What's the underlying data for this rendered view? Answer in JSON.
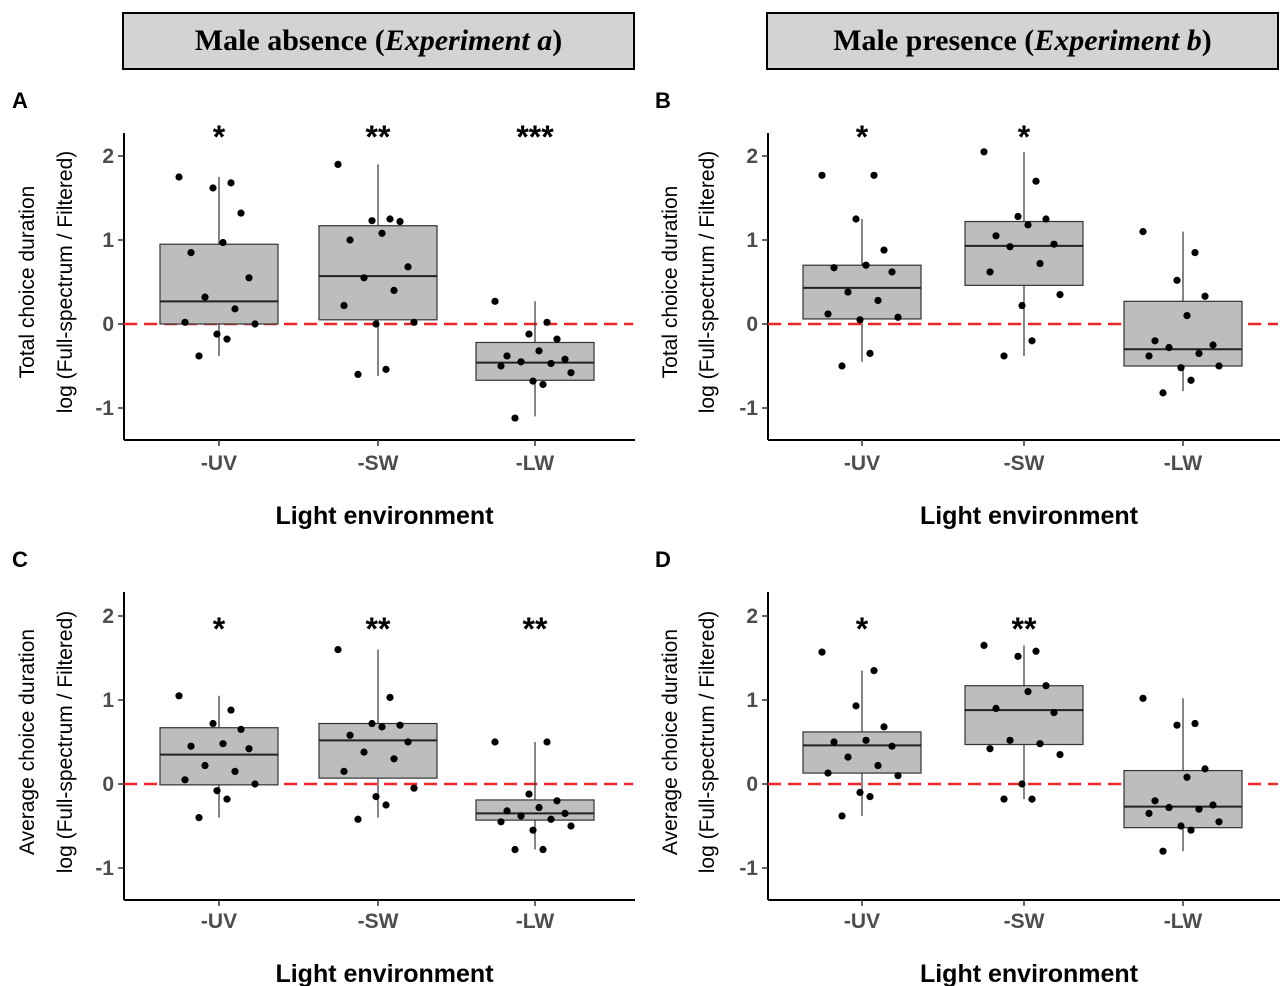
{
  "headers": {
    "left": {
      "main": "Male absence (",
      "italic": "Experiment a",
      "close": ")"
    },
    "right": {
      "main": "Male presence (",
      "italic": "Experiment b",
      "close": ")"
    }
  },
  "chart_data": [
    {
      "panel": "A",
      "type": "box",
      "xlabel": "Light environment",
      "ylabel": [
        "Total choice duration",
        "log (Full-spectrum / Filtered)"
      ],
      "ylim": [
        -1.35,
        2.25
      ],
      "yticks": [
        -1,
        0,
        1,
        2
      ],
      "reference_line": 0,
      "categories": [
        "-UV",
        "-SW",
        "-LW"
      ],
      "significance": [
        "*",
        "**",
        "***"
      ],
      "boxes": [
        {
          "q1": 0.0,
          "median": 0.27,
          "q3": 0.95,
          "whisker_low": -0.38,
          "whisker_high": 1.75
        },
        {
          "q1": 0.05,
          "median": 0.57,
          "q3": 1.17,
          "whisker_low": -0.62,
          "whisker_high": 1.9
        },
        {
          "q1": -0.67,
          "median": -0.46,
          "q3": -0.22,
          "whisker_low": -1.1,
          "whisker_high": 0.27
        }
      ],
      "points": [
        [
          1.75,
          1.68,
          1.62,
          1.32,
          0.97,
          0.85,
          0.55,
          0.32,
          0.18,
          0.02,
          0.0,
          -0.12,
          -0.18,
          -0.38
        ],
        [
          1.9,
          1.25,
          1.23,
          1.22,
          1.08,
          1.0,
          0.68,
          0.55,
          0.4,
          0.22,
          0.02,
          0.0,
          -0.54,
          -0.6
        ],
        [
          0.27,
          0.02,
          -0.12,
          -0.18,
          -0.32,
          -0.38,
          -0.42,
          -0.45,
          -0.47,
          -0.5,
          -0.58,
          -0.68,
          -0.72,
          -1.12
        ]
      ]
    },
    {
      "panel": "B",
      "type": "box",
      "xlabel": "Light environment",
      "ylabel": [
        "Total choice duration",
        "log (Full-spectrum / Filtered)"
      ],
      "ylim": [
        -1.35,
        2.25
      ],
      "yticks": [
        -1,
        0,
        1,
        2
      ],
      "reference_line": 0,
      "categories": [
        "-UV",
        "-SW",
        "-LW"
      ],
      "significance": [
        "*",
        "*",
        ""
      ],
      "boxes": [
        {
          "q1": 0.06,
          "median": 0.43,
          "q3": 0.7,
          "whisker_low": -0.45,
          "whisker_high": 1.25
        },
        {
          "q1": 0.46,
          "median": 0.93,
          "q3": 1.22,
          "whisker_low": -0.38,
          "whisker_high": 2.05
        },
        {
          "q1": -0.5,
          "median": -0.3,
          "q3": 0.27,
          "whisker_low": -0.8,
          "whisker_high": 1.1
        }
      ],
      "points": [
        [
          1.77,
          1.77,
          1.25,
          0.88,
          0.7,
          0.67,
          0.62,
          0.38,
          0.28,
          0.12,
          0.08,
          0.05,
          -0.35,
          -0.5
        ],
        [
          2.05,
          1.7,
          1.28,
          1.25,
          1.18,
          1.05,
          0.95,
          0.92,
          0.72,
          0.62,
          0.35,
          0.22,
          -0.2,
          -0.38
        ],
        [
          1.1,
          0.85,
          0.52,
          0.33,
          0.1,
          -0.2,
          -0.25,
          -0.28,
          -0.35,
          -0.38,
          -0.5,
          -0.52,
          -0.67,
          -0.82
        ]
      ]
    },
    {
      "panel": "C",
      "type": "box",
      "xlabel": "Light environment",
      "ylabel": [
        "Average choice duration",
        "log (Full-spectrum / Filtered)"
      ],
      "ylim": [
        -1.35,
        2.25
      ],
      "yticks": [
        -1,
        0,
        1,
        2
      ],
      "reference_line": 0,
      "categories": [
        "-UV",
        "-SW",
        "-LW"
      ],
      "significance": [
        "*",
        "**",
        "**"
      ],
      "boxes": [
        {
          "q1": -0.01,
          "median": 0.35,
          "q3": 0.67,
          "whisker_low": -0.4,
          "whisker_high": 1.05
        },
        {
          "q1": 0.07,
          "median": 0.52,
          "q3": 0.72,
          "whisker_low": -0.4,
          "whisker_high": 1.6
        },
        {
          "q1": -0.43,
          "median": -0.35,
          "q3": -0.19,
          "whisker_low": -0.78,
          "whisker_high": 0.5
        }
      ],
      "points": [
        [
          1.05,
          0.88,
          0.72,
          0.65,
          0.48,
          0.45,
          0.42,
          0.22,
          0.15,
          0.05,
          0.0,
          -0.08,
          -0.18,
          -0.4
        ],
        [
          1.6,
          1.03,
          0.72,
          0.7,
          0.68,
          0.58,
          0.5,
          0.38,
          0.3,
          0.15,
          -0.05,
          -0.15,
          -0.25,
          -0.42
        ],
        [
          0.5,
          0.5,
          -0.12,
          -0.2,
          -0.28,
          -0.32,
          -0.35,
          -0.38,
          -0.42,
          -0.45,
          -0.5,
          -0.55,
          -0.78,
          -0.78
        ]
      ]
    },
    {
      "panel": "D",
      "type": "box",
      "xlabel": "Light environment",
      "ylabel": [
        "Average choice duration",
        "log (Full-spectrum / Filtered)"
      ],
      "ylim": [
        -1.35,
        2.25
      ],
      "yticks": [
        -1,
        0,
        1,
        2
      ],
      "reference_line": 0,
      "categories": [
        "-UV",
        "-SW",
        "-LW"
      ],
      "significance": [
        "*",
        "**",
        ""
      ],
      "boxes": [
        {
          "q1": 0.13,
          "median": 0.46,
          "q3": 0.62,
          "whisker_low": -0.38,
          "whisker_high": 1.35
        },
        {
          "q1": 0.47,
          "median": 0.88,
          "q3": 1.17,
          "whisker_low": -0.18,
          "whisker_high": 1.65
        },
        {
          "q1": -0.52,
          "median": -0.27,
          "q3": 0.16,
          "whisker_low": -0.8,
          "whisker_high": 1.02
        }
      ],
      "points": [
        [
          1.57,
          1.35,
          0.93,
          0.68,
          0.52,
          0.5,
          0.45,
          0.32,
          0.22,
          0.13,
          0.1,
          -0.1,
          -0.15,
          -0.38
        ],
        [
          1.65,
          1.58,
          1.52,
          1.17,
          1.1,
          0.9,
          0.85,
          0.52,
          0.48,
          0.42,
          0.35,
          0.0,
          -0.18,
          -0.18
        ],
        [
          1.02,
          0.72,
          0.7,
          0.18,
          0.08,
          -0.2,
          -0.25,
          -0.28,
          -0.3,
          -0.35,
          -0.45,
          -0.5,
          -0.55,
          -0.8
        ]
      ]
    }
  ]
}
